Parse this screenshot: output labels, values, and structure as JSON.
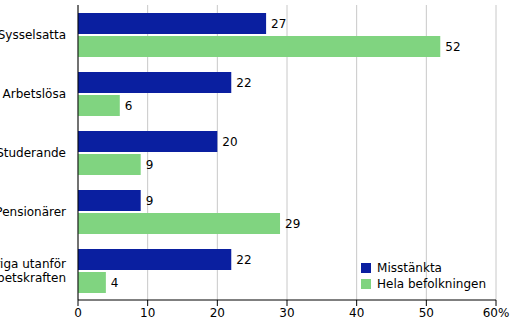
{
  "chart_data": {
    "type": "bar",
    "orientation": "horizontal",
    "categories": [
      "Sysselsatta",
      "Arbetslösa",
      "Studerande",
      "Pensionärer",
      "Övriga utanför arbetskraften"
    ],
    "series": [
      {
        "name": "Misstänkta",
        "color": "#0a1fa0",
        "values": [
          27,
          22,
          20,
          9,
          22
        ]
      },
      {
        "name": "Hela befolkningen",
        "color": "#80d480",
        "values": [
          52,
          6,
          9,
          29,
          4
        ]
      }
    ],
    "xlim": [
      0,
      60
    ],
    "xticks": [
      0,
      10,
      20,
      30,
      40,
      50,
      {
        "value": 60,
        "label": "60%"
      }
    ],
    "grid": true,
    "data_labels": true,
    "legend": "lower right"
  }
}
